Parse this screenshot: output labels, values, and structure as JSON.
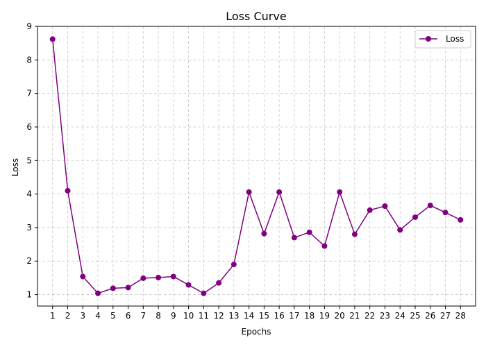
{
  "chart_data": {
    "type": "line",
    "title": "Loss Curve",
    "xlabel": "Epochs",
    "ylabel": "Loss",
    "x": [
      1,
      2,
      3,
      4,
      5,
      6,
      7,
      8,
      9,
      10,
      11,
      12,
      13,
      14,
      15,
      16,
      17,
      18,
      19,
      20,
      21,
      22,
      23,
      24,
      25,
      26,
      27,
      28
    ],
    "xlim": [
      0.0,
      29.0
    ],
    "ylim": [
      0.66,
      9.0
    ],
    "yticks": [
      1,
      2,
      3,
      4,
      5,
      6,
      7,
      8,
      9
    ],
    "grid": true,
    "legend_position": "top-right",
    "series": [
      {
        "name": "Loss",
        "color": "#800080",
        "marker": "circle",
        "values": [
          8.62,
          4.1,
          1.54,
          1.04,
          1.19,
          1.21,
          1.49,
          1.51,
          1.54,
          1.29,
          1.04,
          1.35,
          1.9,
          4.06,
          2.82,
          4.06,
          2.7,
          2.86,
          2.45,
          4.06,
          2.8,
          3.52,
          3.64,
          2.93,
          3.31,
          3.66,
          3.45,
          3.23
        ]
      }
    ]
  }
}
